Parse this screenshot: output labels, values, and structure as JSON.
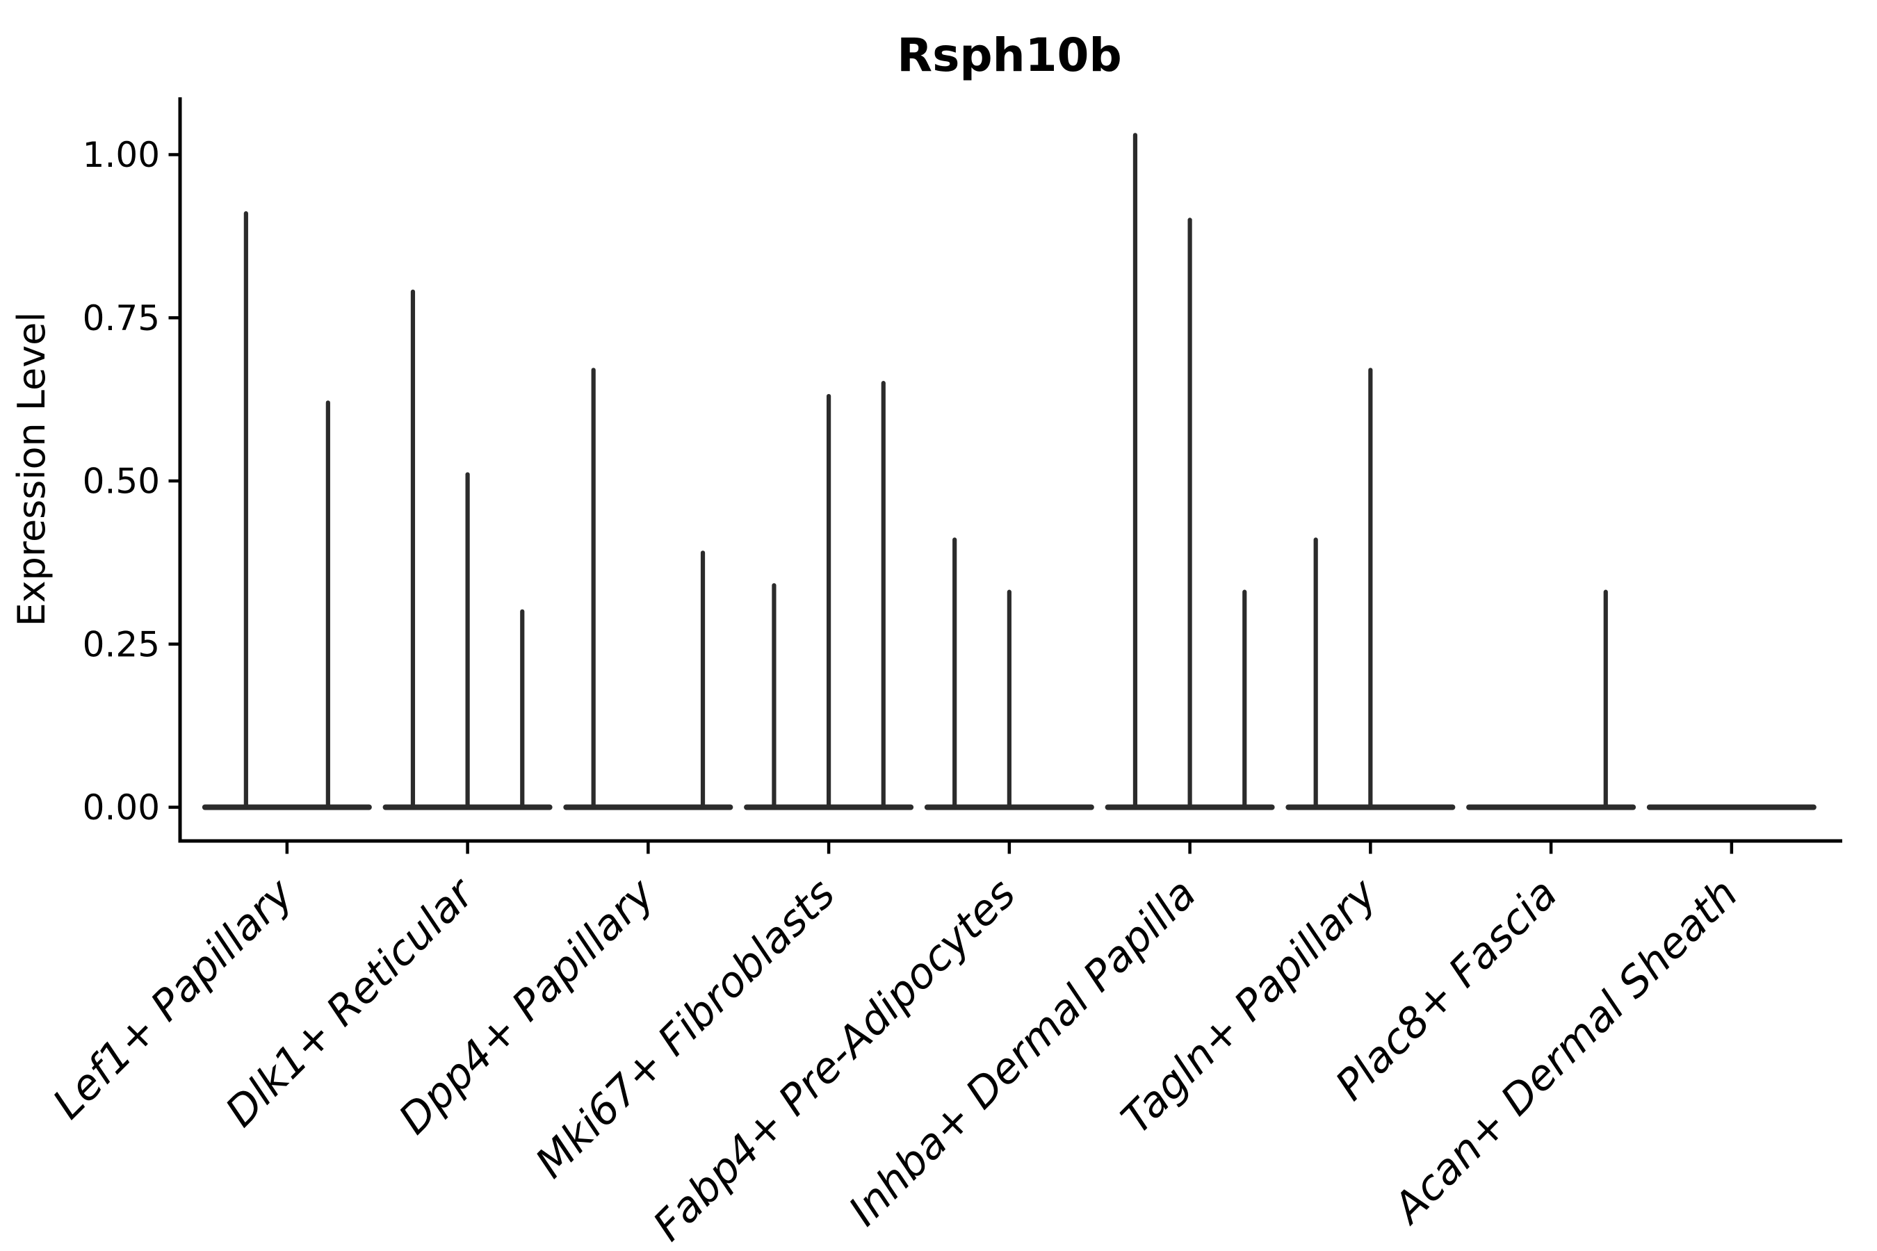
{
  "chart_data": {
    "type": "violin",
    "title": "Rsph10b",
    "ylabel": "Expression Level",
    "xlabel": "",
    "ylim": [
      -0.054,
      1.088
    ],
    "yticks": [
      0.0,
      0.25,
      0.5,
      0.75,
      1.0
    ],
    "ytick_labels": [
      "0.00",
      "0.25",
      "0.50",
      "0.75",
      "1.00"
    ],
    "grid": false,
    "legend": "none",
    "x_tick_label_style": "italic, rotated 45deg, anchored at top-right",
    "categories": [
      {
        "label": "Lef1+ Papillary",
        "sub_violins": 2,
        "spikes": [
          {
            "slot": 1,
            "value": 0.91
          },
          {
            "slot": 2,
            "value": 0.62
          }
        ]
      },
      {
        "label": "Dlk1+ Reticular",
        "sub_violins": 3,
        "spikes": [
          {
            "slot": 1,
            "value": 0.79
          },
          {
            "slot": 2,
            "value": 0.51
          },
          {
            "slot": 3,
            "value": 0.3
          }
        ]
      },
      {
        "label": "Dpp4+ Papillary",
        "sub_violins": 3,
        "spikes": [
          {
            "slot": 1,
            "value": 0.67
          },
          {
            "slot": 3,
            "value": 0.39
          }
        ]
      },
      {
        "label": "Mki67+ Fibroblasts",
        "sub_violins": 3,
        "spikes": [
          {
            "slot": 1,
            "value": 0.34
          },
          {
            "slot": 2,
            "value": 0.63
          },
          {
            "slot": 3,
            "value": 0.65
          }
        ]
      },
      {
        "label": "Fabp4+ Pre-Adipocytes",
        "sub_violins": 3,
        "spikes": [
          {
            "slot": 1,
            "value": 0.41
          },
          {
            "slot": 2,
            "value": 0.33
          }
        ]
      },
      {
        "label": "Inhba+ Dermal Papilla",
        "sub_violins": 3,
        "spikes": [
          {
            "slot": 1,
            "value": 1.03
          },
          {
            "slot": 2,
            "value": 0.9
          },
          {
            "slot": 3,
            "value": 0.33
          }
        ]
      },
      {
        "label": "Tagln+ Papillary",
        "sub_violins": 3,
        "spikes": [
          {
            "slot": 1,
            "value": 0.41
          },
          {
            "slot": 2,
            "value": 0.67
          }
        ]
      },
      {
        "label": "Plac8+ Fascia",
        "sub_violins": 3,
        "spikes": [
          {
            "slot": 3,
            "value": 0.33
          }
        ]
      },
      {
        "label": "Acan+ Dermal Sheath",
        "sub_violins": 3,
        "spikes": []
      }
    ],
    "colors": {
      "violin": "#2b2b2b",
      "axis": "#000000",
      "text": "#000000",
      "background": "#ffffff"
    }
  }
}
